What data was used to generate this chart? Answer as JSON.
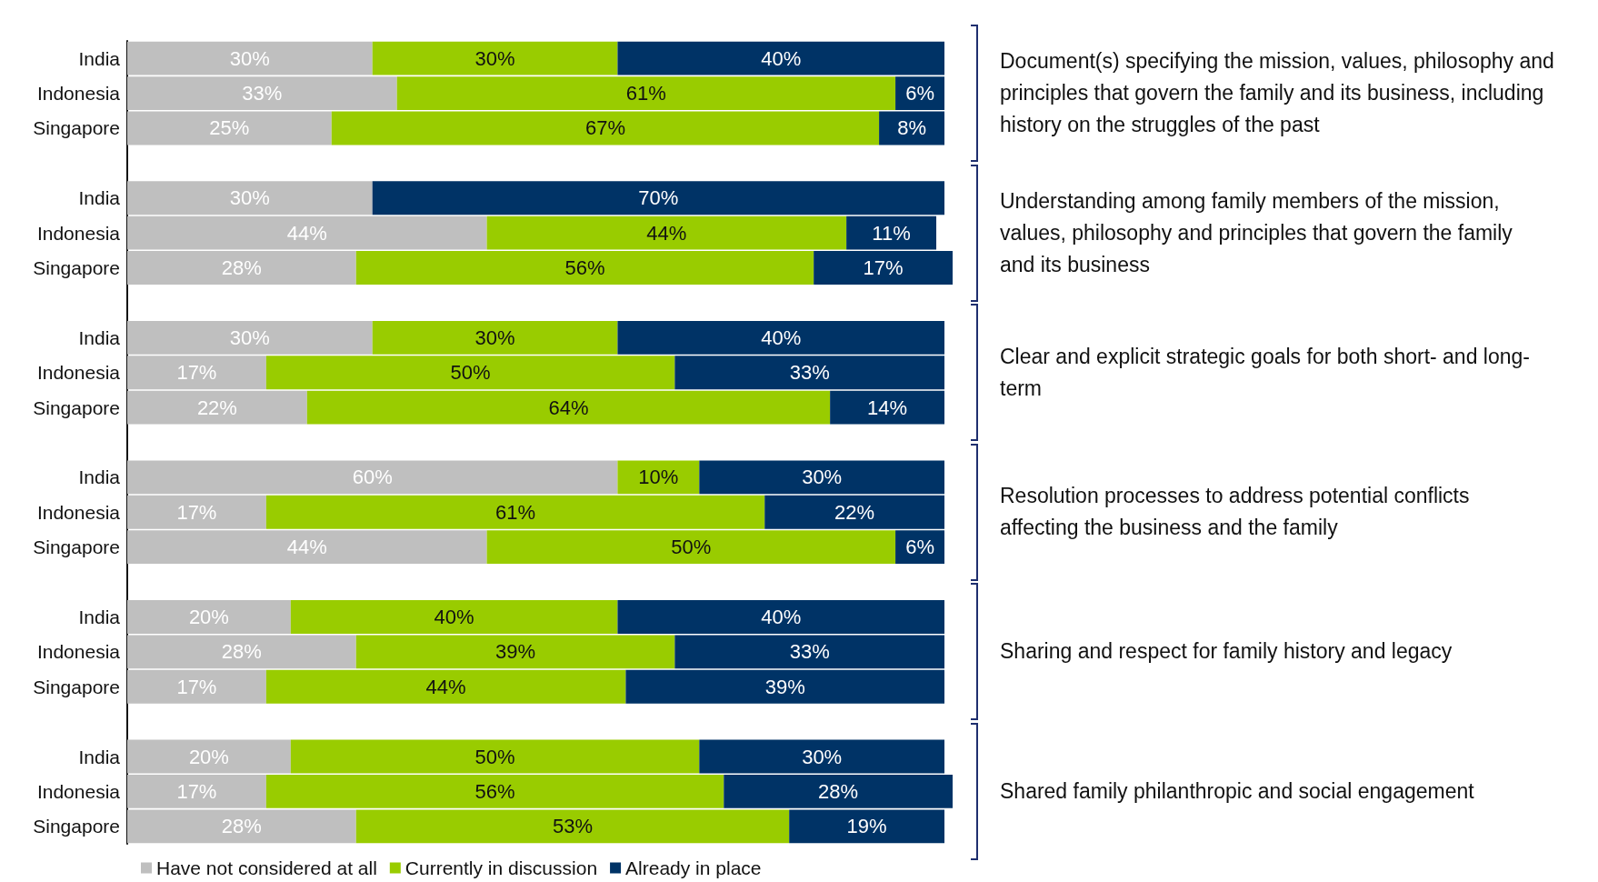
{
  "chart_data": {
    "type": "bar",
    "orientation": "horizontal",
    "stacked": true,
    "legend": "bottom",
    "grid": false,
    "categories": [
      "India",
      "Indonesia",
      "Singapore",
      null,
      "India",
      "Indonesia",
      "Singapore",
      null,
      "India",
      "Indonesia",
      "Singapore",
      null,
      "India",
      "Indonesia",
      "Singapore",
      null,
      "India",
      "Indonesia",
      "Singapore",
      null,
      "India",
      "Indonesia",
      "Singapore"
    ],
    "series": [
      {
        "name": "Have not considered at all",
        "color": "#bfbfbf",
        "values": [
          30,
          33,
          25,
          null,
          30,
          44,
          28,
          null,
          30,
          17,
          22,
          null,
          60,
          17,
          44,
          null,
          20,
          28,
          17,
          null,
          20,
          17,
          28
        ],
        "value_labels": [
          "30%",
          "33%",
          "25%",
          null,
          "30%",
          "44%",
          "28%",
          null,
          "30%",
          "17%",
          "22%",
          null,
          "60%",
          "17%",
          "44%",
          null,
          "20%",
          "28%",
          "17%",
          null,
          "20%",
          "17%",
          "28%"
        ]
      },
      {
        "name": "Currently in discussion",
        "color": "#99cc00",
        "values": [
          30,
          61,
          67,
          null,
          null,
          44,
          56,
          null,
          30,
          50,
          64,
          null,
          10,
          61,
          50,
          null,
          40,
          39,
          44,
          null,
          50,
          56,
          53
        ],
        "value_labels": [
          "30%",
          "61%",
          "67%",
          null,
          null,
          "44%",
          "56%",
          null,
          "30%",
          "50%",
          "64%",
          null,
          "10%",
          "61%",
          "50%",
          null,
          "40%",
          "39%",
          "44%",
          null,
          "50%",
          "56%",
          "53%"
        ]
      },
      {
        "name": "Already in place",
        "color": "#003366",
        "values": [
          40,
          6,
          8,
          null,
          70,
          11,
          17,
          null,
          40,
          33,
          14,
          null,
          30,
          22,
          6,
          null,
          40,
          33,
          39,
          null,
          30,
          28,
          19
        ],
        "value_labels": [
          "40%",
          "6%",
          "8%",
          null,
          "70%",
          "11%",
          "17%",
          null,
          "40%",
          "33%",
          "14%",
          null,
          "30%",
          "22%",
          "6%",
          null,
          "40%",
          "33%",
          "39%",
          null,
          "30%",
          "28%",
          "19%"
        ]
      }
    ],
    "annotations": [
      "Document(s) specifying the mission, values, philosophy and principles that govern the family and its business, including history on the struggles of the past",
      "Understanding among family members of the mission, values, philosophy and principles that govern the family and its business",
      "Clear and explicit strategic goals for both short- and long-term",
      "Resolution processes to address potential conflicts affecting the business and the family",
      "Sharing and respect for family history and legacy",
      "Shared family philanthropic and social engagement"
    ]
  }
}
